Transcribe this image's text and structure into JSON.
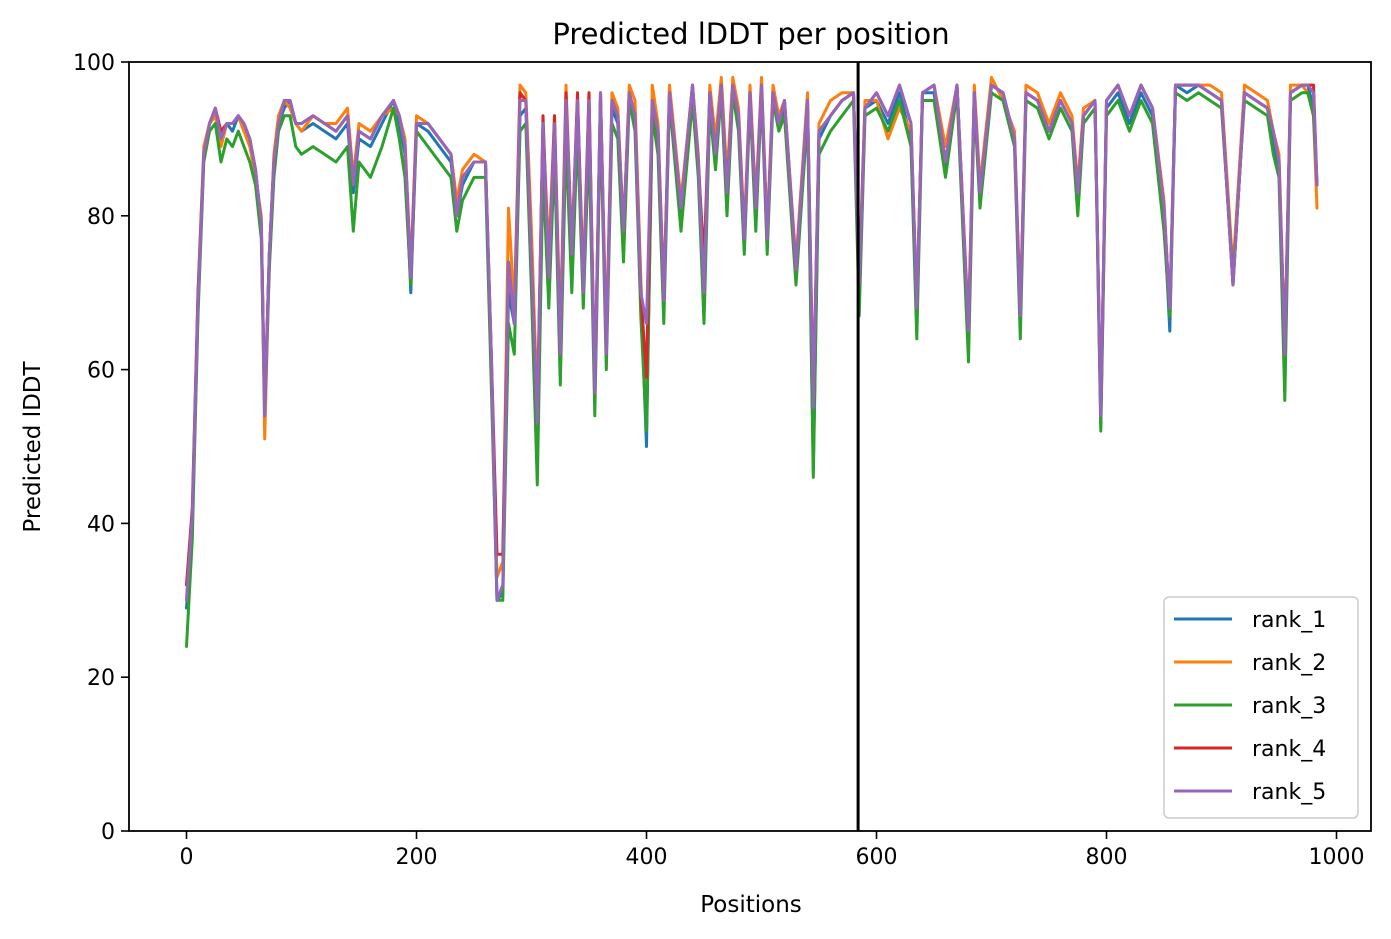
{
  "chart_data": {
    "type": "line",
    "title": "Predicted lDDT per position",
    "xlabel": "Positions",
    "ylabel": "Predicted lDDT",
    "xlim": [
      -50,
      1030
    ],
    "ylim": [
      0,
      100
    ],
    "xticks": [
      0,
      200,
      400,
      600,
      800,
      1000
    ],
    "yticks": [
      0,
      20,
      40,
      60,
      80,
      100
    ],
    "grid": false,
    "legend_position": "lower right",
    "vertical_line": {
      "x": 584,
      "color": "#000000"
    },
    "x": [
      0,
      5,
      10,
      15,
      20,
      25,
      30,
      35,
      40,
      45,
      50,
      55,
      60,
      65,
      68,
      72,
      76,
      80,
      85,
      90,
      95,
      100,
      110,
      120,
      130,
      140,
      145,
      150,
      160,
      170,
      180,
      185,
      190,
      195,
      200,
      210,
      220,
      230,
      235,
      240,
      250,
      260,
      265,
      270,
      275,
      280,
      285,
      290,
      295,
      300,
      305,
      310,
      315,
      320,
      325,
      330,
      335,
      340,
      345,
      350,
      355,
      360,
      365,
      370,
      375,
      380,
      385,
      390,
      395,
      400,
      405,
      410,
      415,
      420,
      430,
      440,
      445,
      450,
      455,
      460,
      465,
      470,
      475,
      480,
      485,
      490,
      495,
      500,
      505,
      510,
      515,
      520,
      530,
      540,
      545,
      550,
      560,
      570,
      580,
      585,
      590,
      600,
      610,
      620,
      630,
      635,
      640,
      650,
      660,
      670,
      680,
      685,
      690,
      700,
      710,
      720,
      725,
      730,
      740,
      750,
      760,
      770,
      775,
      780,
      790,
      795,
      800,
      810,
      820,
      830,
      840,
      850,
      855,
      860,
      870,
      880,
      890,
      900,
      910,
      920,
      930,
      940,
      945,
      950,
      955,
      960,
      970,
      975,
      980,
      983
    ],
    "series": [
      {
        "name": "rank_1",
        "color": "#1f77b4",
        "values": [
          29,
          40,
          68,
          88,
          92,
          93,
          90,
          92,
          91,
          93,
          91,
          90,
          86,
          78,
          55,
          75,
          87,
          92,
          94,
          95,
          92,
          91,
          92,
          91,
          90,
          92,
          83,
          90,
          89,
          92,
          95,
          92,
          88,
          70,
          92,
          91,
          89,
          87,
          80,
          84,
          87,
          87,
          60,
          30,
          31,
          70,
          66,
          93,
          94,
          75,
          53,
          90,
          72,
          91,
          62,
          94,
          74,
          94,
          70,
          94,
          56,
          95,
          62,
          94,
          92,
          76,
          96,
          93,
          70,
          50,
          95,
          90,
          68,
          96,
          80,
          96,
          86,
          68,
          95,
          88,
          97,
          82,
          97,
          92,
          76,
          96,
          80,
          97,
          76,
          96,
          92,
          94,
          72,
          95,
          47,
          90,
          93,
          95,
          96,
          70,
          94,
          95,
          92,
          96,
          90,
          66,
          96,
          96,
          86,
          97,
          64,
          96,
          82,
          97,
          96,
          90,
          66,
          96,
          95,
          91,
          95,
          92,
          82,
          93,
          95,
          53,
          94,
          96,
          92,
          96,
          93,
          80,
          65,
          97,
          96,
          97,
          96,
          95,
          71,
          96,
          95,
          94,
          89,
          86,
          62,
          96,
          97,
          97,
          94,
          84
        ]
      },
      {
        "name": "rank_2",
        "color": "#ff7f0e",
        "values": [
          30,
          41,
          70,
          89,
          92,
          93,
          89,
          92,
          92,
          93,
          91,
          89,
          85,
          80,
          51,
          74,
          88,
          93,
          95,
          94,
          92,
          91,
          93,
          92,
          92,
          94,
          85,
          92,
          91,
          93,
          94,
          93,
          90,
          73,
          93,
          92,
          90,
          88,
          82,
          86,
          88,
          87,
          62,
          33,
          35,
          81,
          68,
          97,
          96,
          78,
          55,
          92,
          75,
          93,
          65,
          97,
          76,
          95,
          72,
          96,
          58,
          96,
          64,
          96,
          94,
          78,
          97,
          95,
          72,
          54,
          97,
          92,
          70,
          97,
          82,
          97,
          88,
          70,
          97,
          90,
          98,
          85,
          98,
          94,
          78,
          97,
          82,
          98,
          78,
          97,
          93,
          95,
          74,
          96,
          49,
          92,
          95,
          96,
          96,
          72,
          95,
          95,
          90,
          94,
          91,
          68,
          96,
          97,
          89,
          97,
          66,
          97,
          84,
          98,
          95,
          91,
          68,
          97,
          96,
          92,
          96,
          93,
          84,
          94,
          95,
          54,
          95,
          97,
          93,
          97,
          94,
          82,
          67,
          97,
          97,
          97,
          97,
          96,
          73,
          97,
          96,
          95,
          91,
          88,
          63,
          97,
          97,
          96,
          93,
          81
        ]
      },
      {
        "name": "rank_3",
        "color": "#2ca02c",
        "values": [
          24,
          38,
          67,
          87,
          91,
          92,
          87,
          90,
          89,
          91,
          89,
          87,
          84,
          77,
          54,
          73,
          85,
          91,
          93,
          93,
          89,
          88,
          89,
          88,
          87,
          89,
          78,
          87,
          85,
          89,
          94,
          90,
          85,
          71,
          91,
          89,
          87,
          85,
          78,
          82,
          85,
          85,
          58,
          30,
          30,
          66,
          62,
          91,
          92,
          70,
          45,
          86,
          68,
          88,
          58,
          90,
          70,
          91,
          68,
          90,
          54,
          93,
          60,
          92,
          90,
          74,
          95,
          91,
          67,
          52,
          93,
          88,
          66,
          95,
          78,
          95,
          85,
          66,
          94,
          86,
          96,
          80,
          96,
          91,
          75,
          95,
          78,
          96,
          75,
          95,
          91,
          93,
          71,
          93,
          46,
          88,
          91,
          93,
          95,
          67,
          93,
          94,
          91,
          95,
          89,
          64,
          95,
          95,
          85,
          96,
          61,
          95,
          81,
          96,
          95,
          89,
          64,
          95,
          94,
          90,
          94,
          91,
          80,
          92,
          94,
          52,
          93,
          95,
          91,
          95,
          92,
          78,
          67,
          96,
          95,
          96,
          95,
          94,
          72,
          95,
          94,
          93,
          88,
          85,
          56,
          95,
          96,
          96,
          93,
          84
        ]
      },
      {
        "name": "rank_4",
        "color": "#d62728",
        "values": [
          32,
          42,
          70,
          88,
          92,
          94,
          91,
          92,
          92,
          93,
          92,
          90,
          86,
          79,
          55,
          75,
          87,
          92,
          95,
          95,
          92,
          92,
          93,
          92,
          91,
          93,
          84,
          91,
          90,
          93,
          95,
          93,
          89,
          72,
          92,
          92,
          90,
          88,
          80,
          85,
          87,
          87,
          62,
          36,
          36,
          74,
          66,
          96,
          95,
          74,
          53,
          93,
          72,
          93,
          62,
          96,
          75,
          96,
          70,
          96,
          57,
          96,
          62,
          95,
          93,
          78,
          96,
          93,
          70,
          59,
          95,
          91,
          69,
          96,
          81,
          97,
          87,
          74,
          96,
          88,
          97,
          83,
          97,
          93,
          77,
          96,
          81,
          97,
          77,
          96,
          92,
          95,
          73,
          95,
          56,
          91,
          93,
          95,
          96,
          71,
          94,
          96,
          93,
          97,
          92,
          68,
          96,
          97,
          87,
          97,
          65,
          96,
          83,
          97,
          96,
          90,
          67,
          96,
          95,
          91,
          95,
          92,
          83,
          93,
          95,
          54,
          95,
          97,
          93,
          97,
          94,
          81,
          68,
          97,
          97,
          97,
          96,
          95,
          71,
          96,
          95,
          94,
          91,
          87,
          62,
          96,
          97,
          97,
          97,
          84
        ]
      },
      {
        "name": "rank_5",
        "color": "#9467bd",
        "values": [
          30,
          41,
          69,
          88,
          92,
          94,
          90,
          92,
          92,
          93,
          92,
          90,
          86,
          79,
          54,
          75,
          87,
          92,
          95,
          95,
          92,
          92,
          93,
          92,
          91,
          93,
          84,
          91,
          90,
          93,
          95,
          93,
          89,
          72,
          92,
          92,
          90,
          88,
          80,
          85,
          87,
          87,
          62,
          30,
          32,
          74,
          66,
          95,
          95,
          74,
          53,
          92,
          72,
          92,
          62,
          95,
          75,
          95,
          70,
          95,
          57,
          96,
          62,
          95,
          93,
          78,
          96,
          93,
          70,
          66,
          95,
          91,
          69,
          96,
          81,
          97,
          87,
          70,
          96,
          88,
          97,
          83,
          97,
          93,
          77,
          96,
          81,
          97,
          77,
          96,
          92,
          95,
          73,
          95,
          55,
          91,
          93,
          95,
          96,
          71,
          94,
          96,
          93,
          97,
          92,
          68,
          96,
          97,
          87,
          97,
          65,
          96,
          83,
          97,
          96,
          90,
          67,
          96,
          95,
          91,
          95,
          92,
          83,
          93,
          95,
          54,
          95,
          97,
          93,
          97,
          94,
          81,
          68,
          97,
          97,
          97,
          96,
          95,
          71,
          96,
          95,
          94,
          91,
          87,
          62,
          96,
          97,
          97,
          96,
          84
        ]
      }
    ]
  }
}
